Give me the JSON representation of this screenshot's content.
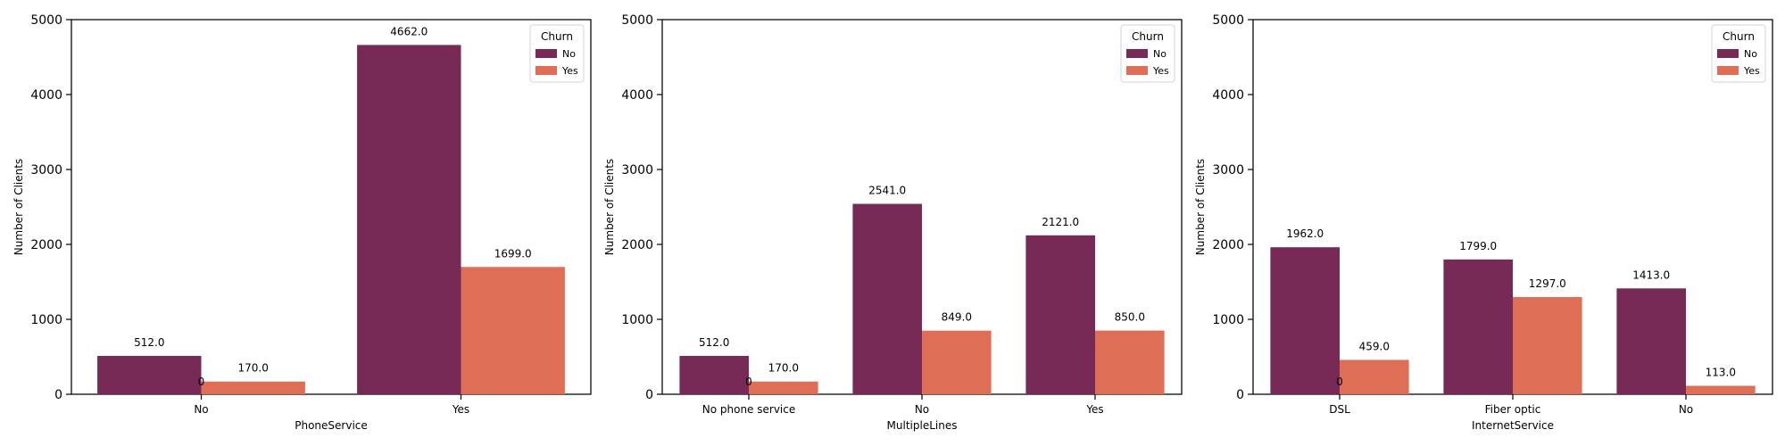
{
  "colors": {
    "no": "#772A56",
    "yes": "#DE6E56",
    "axis": "#000000",
    "background": "#FFFFFF"
  },
  "chart_data": [
    {
      "type": "bar",
      "xlabel": "PhoneService",
      "ylabel": "Number of Clients",
      "ylim": [
        0,
        5000
      ],
      "yticks": [
        "0",
        "1000",
        "2000",
        "3000",
        "4000",
        "5000"
      ],
      "categories": [
        "No",
        "Yes"
      ],
      "legend": {
        "title": "Churn",
        "position": "top-right"
      },
      "series": [
        {
          "name": "No",
          "color": "#772A56",
          "values": [
            512,
            4662
          ],
          "labels": [
            "512.0",
            "4662.0"
          ]
        },
        {
          "name": "Yes",
          "color": "#DE6E56",
          "values": [
            170,
            1699
          ],
          "labels": [
            "170.0",
            "1699.0"
          ]
        }
      ],
      "extra_label": "0"
    },
    {
      "type": "bar",
      "xlabel": "MultipleLines",
      "ylabel": "Number of Clients",
      "ylim": [
        0,
        5000
      ],
      "yticks": [
        "0",
        "1000",
        "2000",
        "3000",
        "4000",
        "5000"
      ],
      "categories": [
        "No phone service",
        "No",
        "Yes"
      ],
      "legend": {
        "title": "Churn",
        "position": "top-right"
      },
      "series": [
        {
          "name": "No",
          "color": "#772A56",
          "values": [
            512,
            2541,
            2121
          ],
          "labels": [
            "512.0",
            "2541.0",
            "2121.0"
          ]
        },
        {
          "name": "Yes",
          "color": "#DE6E56",
          "values": [
            170,
            849,
            850
          ],
          "labels": [
            "170.0",
            "849.0",
            "850.0"
          ]
        }
      ],
      "extra_label": "0"
    },
    {
      "type": "bar",
      "xlabel": "InternetService",
      "ylabel": "Number of Clients",
      "ylim": [
        0,
        5000
      ],
      "yticks": [
        "0",
        "1000",
        "2000",
        "3000",
        "4000",
        "5000"
      ],
      "categories": [
        "DSL",
        "Fiber optic",
        "No"
      ],
      "legend": {
        "title": "Churn",
        "position": "top-right"
      },
      "series": [
        {
          "name": "No",
          "color": "#772A56",
          "values": [
            1962,
            1799,
            1413
          ],
          "labels": [
            "1962.0",
            "1799.0",
            "1413.0"
          ]
        },
        {
          "name": "Yes",
          "color": "#DE6E56",
          "values": [
            459,
            1297,
            113
          ],
          "labels": [
            "459.0",
            "1297.0",
            "113.0"
          ]
        }
      ],
      "extra_label": "0"
    }
  ]
}
